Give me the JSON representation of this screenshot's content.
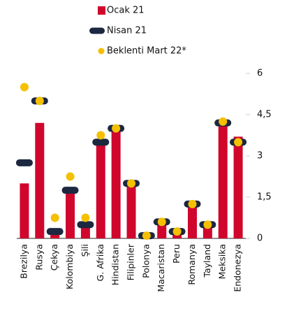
{
  "chart_data": {
    "type": "bar",
    "categories": [
      "Brezilya",
      "Rusya",
      "Çekya",
      "Kolombiya",
      "Şili",
      "G. Afrika",
      "Hindistan",
      "Filipinler",
      "Polonya",
      "Macaristan",
      "Peru",
      "Romanya",
      "Tayland",
      "Meksika",
      "Endonezya"
    ],
    "series": [
      {
        "name": "Ocak 21",
        "type": "bar",
        "color": "#d0062d",
        "values": [
          2.0,
          4.2,
          0.3,
          1.7,
          0.4,
          3.5,
          4.0,
          1.9,
          0.1,
          0.6,
          0.3,
          1.3,
          0.5,
          4.2,
          3.7
        ]
      },
      {
        "name": "Nisan 21",
        "type": "dash",
        "color": "#1c2740",
        "values": [
          2.75,
          5.0,
          0.25,
          1.75,
          0.5,
          3.5,
          4.0,
          2.0,
          0.1,
          0.6,
          0.25,
          1.25,
          0.5,
          4.2,
          3.5
        ]
      },
      {
        "name": "Beklenti Mart 22*",
        "type": "dot",
        "color": "#f5c000",
        "values": [
          5.5,
          5.0,
          0.75,
          2.25,
          0.75,
          3.75,
          4.0,
          2.0,
          0.1,
          0.6,
          0.25,
          1.25,
          0.5,
          4.25,
          3.5
        ]
      }
    ],
    "ylim": [
      0,
      6
    ],
    "yticks": [
      0,
      {
        "value": 1.5,
        "label": "1,5"
      },
      3,
      {
        "value": 4.5,
        "label": "4,5"
      },
      6
    ],
    "y_axis_side": "right"
  }
}
